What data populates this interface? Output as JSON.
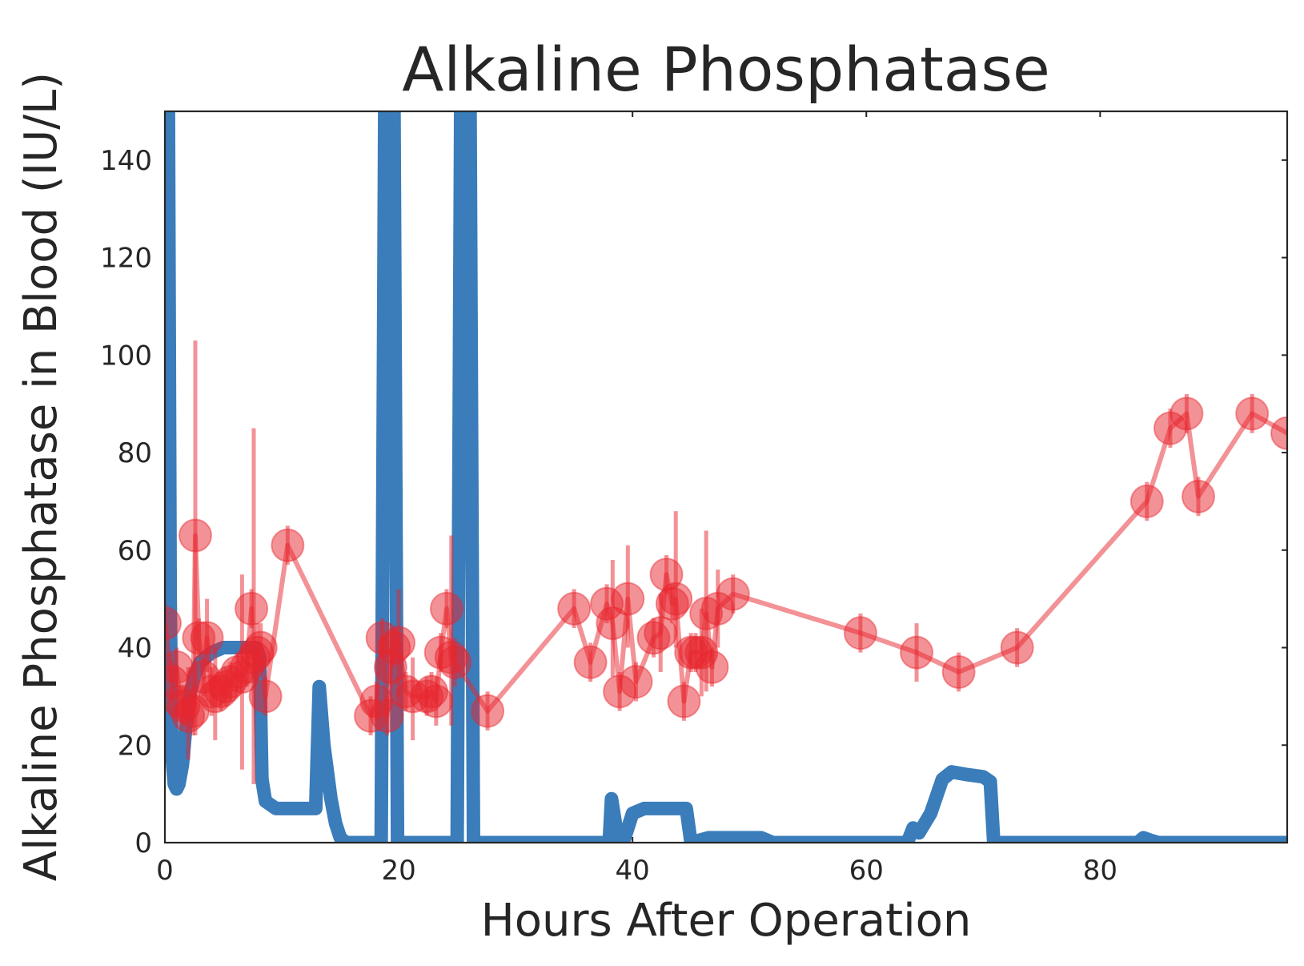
{
  "chart_data": {
    "type": "line",
    "title": "Alkaline Phosphatase",
    "xlabel": "Hours After Operation",
    "ylabel": "Alkaline Phosphatase in Blood (IU/L)",
    "xlim": [
      0,
      96
    ],
    "ylim": [
      0,
      150
    ],
    "xticks": [
      0,
      20,
      40,
      60,
      80
    ],
    "yticks": [
      0,
      20,
      40,
      60,
      80,
      100,
      120,
      140
    ],
    "grid": false,
    "colors": {
      "estimate": "#3a7dba",
      "observed": "#e8262e",
      "frame": "#262626"
    },
    "series": [
      {
        "style": "thick-line",
        "x": [
          0,
          0.3,
          0.45,
          0.6,
          0.8,
          1.0,
          1.2,
          1.5,
          1.8,
          2.1,
          2.5,
          3.0,
          4.0,
          5.0,
          6.0,
          7.0,
          7.8,
          8.1,
          8.3,
          8.6,
          9.5,
          11,
          12.5,
          12.9,
          13.2,
          13.6,
          14.2,
          14.6,
          15,
          15.5,
          18.5,
          18.8,
          19.6,
          19.9,
          20.2,
          25.0,
          25.3,
          26.1,
          26.4,
          27,
          38.0,
          38.2,
          38.6,
          39.2,
          40.0,
          41.0,
          44.2,
          44.6,
          45.0,
          46.5,
          47,
          51,
          52,
          63.5,
          64.0,
          64.5,
          65.5,
          66.5,
          67.3,
          68.5,
          70.0,
          70.6,
          70.9,
          71.5,
          83.2,
          83.7,
          84.3,
          85,
          96
        ],
        "y": [
          150,
          150,
          50,
          18,
          12,
          11,
          12,
          16,
          24,
          30,
          34,
          37,
          39,
          40,
          40,
          40,
          40,
          38,
          13,
          8.5,
          7,
          7,
          7,
          7,
          32,
          20,
          9,
          4,
          1,
          0,
          0,
          150,
          150,
          0,
          0,
          0,
          150,
          150,
          0,
          0,
          0,
          9,
          3,
          0,
          6,
          7,
          7,
          7,
          0,
          1,
          1,
          1,
          0,
          0,
          3,
          2,
          6,
          13,
          14.5,
          14,
          13.5,
          12.5,
          0,
          0,
          0,
          1,
          0.5,
          0,
          0
        ]
      },
      {
        "style": "markers-with-errorbars",
        "points": [
          [
            0,
            45,
            41,
            49
          ],
          [
            0.6,
            33,
            29,
            37
          ],
          [
            1.0,
            36,
            32,
            40
          ],
          [
            1.3,
            29,
            26,
            32
          ],
          [
            1.6,
            28,
            24,
            32
          ],
          [
            2.0,
            26,
            17,
            36
          ],
          [
            2.4,
            27,
            22,
            32
          ],
          [
            2.6,
            63,
            22,
            103
          ],
          [
            2.9,
            42,
            38,
            46
          ],
          [
            3.3,
            34,
            30,
            38
          ],
          [
            3.6,
            42,
            35,
            50
          ],
          [
            4.0,
            31,
            26,
            36
          ],
          [
            4.3,
            30,
            21,
            40
          ],
          [
            4.8,
            31,
            27,
            35
          ],
          [
            5.2,
            32,
            28,
            36
          ],
          [
            5.6,
            33,
            29,
            37
          ],
          [
            6.2,
            35,
            31,
            39
          ],
          [
            6.6,
            34,
            15,
            55
          ],
          [
            7.0,
            36,
            32,
            40
          ],
          [
            7.4,
            48,
            44,
            52
          ],
          [
            7.6,
            38,
            12,
            85
          ],
          [
            7.9,
            39,
            33,
            45
          ],
          [
            8.2,
            40,
            35,
            45
          ],
          [
            8.6,
            30,
            26,
            34
          ],
          [
            10.5,
            61,
            57,
            65
          ],
          [
            17.6,
            26,
            22,
            30
          ],
          [
            18.1,
            29,
            25,
            33
          ],
          [
            18.6,
            42,
            38,
            46
          ],
          [
            19.0,
            26,
            22,
            30
          ],
          [
            19.3,
            36,
            32,
            40
          ],
          [
            19.6,
            40,
            36,
            44
          ],
          [
            20.0,
            41,
            30,
            52
          ],
          [
            20.6,
            31,
            27,
            35
          ],
          [
            21.2,
            30,
            21,
            38
          ],
          [
            22.4,
            30,
            26,
            34
          ],
          [
            22.8,
            31,
            27,
            35
          ],
          [
            23.2,
            29,
            24,
            34
          ],
          [
            23.6,
            39,
            35,
            43
          ],
          [
            24.1,
            48,
            44,
            52
          ],
          [
            24.5,
            38,
            24,
            63
          ],
          [
            24.8,
            37,
            32,
            42
          ],
          [
            27.6,
            27,
            23,
            31
          ],
          [
            35.0,
            48,
            44,
            52
          ],
          [
            36.4,
            37,
            33,
            41
          ],
          [
            37.8,
            49,
            45,
            53
          ],
          [
            38.3,
            45,
            34,
            58
          ],
          [
            38.9,
            31,
            27,
            35
          ],
          [
            39.6,
            50,
            40,
            61
          ],
          [
            40.3,
            33,
            29,
            37
          ],
          [
            41.8,
            42,
            38,
            46
          ],
          [
            42.4,
            43,
            35,
            51
          ],
          [
            42.9,
            55,
            51,
            59
          ],
          [
            43.4,
            49,
            45,
            53
          ],
          [
            43.7,
            50,
            40,
            68
          ],
          [
            44.4,
            29,
            25,
            33
          ],
          [
            45.0,
            39,
            35,
            43
          ],
          [
            45.4,
            39,
            35,
            43
          ],
          [
            45.9,
            39,
            30,
            48
          ],
          [
            46.3,
            47,
            31,
            64
          ],
          [
            46.8,
            36,
            32,
            40
          ],
          [
            47.3,
            48,
            40,
            56
          ],
          [
            48.6,
            51,
            47,
            55
          ],
          [
            59.5,
            43,
            39,
            47
          ],
          [
            64.3,
            39,
            33,
            45
          ],
          [
            67.9,
            35,
            31,
            39
          ],
          [
            72.9,
            40,
            36,
            44
          ],
          [
            84.0,
            70,
            66,
            74
          ],
          [
            86.0,
            85,
            81,
            89
          ],
          [
            87.4,
            88,
            84,
            92
          ],
          [
            88.4,
            71,
            67,
            75
          ],
          [
            93.0,
            88,
            84,
            92
          ],
          [
            96.0,
            84,
            84,
            84
          ]
        ]
      }
    ]
  }
}
